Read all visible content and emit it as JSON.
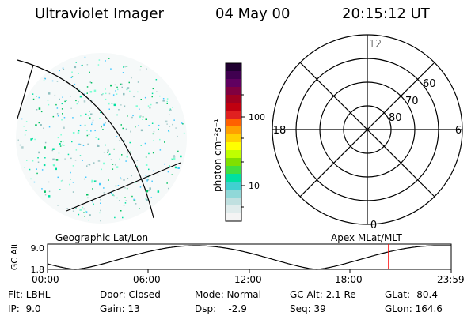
{
  "header": {
    "instrument": "Ultraviolet Imager",
    "date": "04 May 00",
    "time": "20:15:12 UT"
  },
  "image_panel": {
    "label": "Geographic Lat/Lon",
    "pixel_colors": [
      "#7fffd4",
      "#00e0a0",
      "#40c8ff",
      "#90c0c0",
      "#b0d0d0",
      "#00c060"
    ]
  },
  "colorbar": {
    "unit_label": "photon cm⁻²s⁻¹",
    "ticks": [
      "100",
      "10"
    ],
    "colors": [
      "#200030",
      "#400050",
      "#600060",
      "#800040",
      "#a00020",
      "#c00010",
      "#e02020",
      "#ff6000",
      "#ffa000",
      "#ffd000",
      "#ffff00",
      "#c0ff00",
      "#80e000",
      "#40e040",
      "#00e0a0",
      "#40d0d0",
      "#90d8d8",
      "#c0e0e0",
      "#e0ecec",
      "#f4f4f4"
    ]
  },
  "polar_panel": {
    "label": "Apex MLat/MLT",
    "mlt_labels": {
      "top": "12",
      "left": "18",
      "right": "6",
      "bottom": "0"
    },
    "lat_labels": [
      "60",
      "70",
      "80"
    ]
  },
  "altitude_plot": {
    "ylabel": "GC Alt",
    "y_max": "9.0",
    "y_min": "1.8",
    "x_ticks": [
      "00:00",
      "06:00",
      "12:00",
      "18:00",
      "23:59"
    ],
    "curve_color": "#000000",
    "marker_color": "#ff0000"
  },
  "status": {
    "flt": "Flt: LBHL",
    "ip": "IP:  9.0",
    "door": "Door: Closed",
    "gain": "Gain: 13",
    "mode": "Mode: Normal",
    "dsp": "Dsp:    -2.9",
    "gcalt": "GC Alt: 2.1 Re",
    "seq": "Seq: 39",
    "glat": "GLat: -80.4",
    "glon": "GLon: 164.6"
  }
}
